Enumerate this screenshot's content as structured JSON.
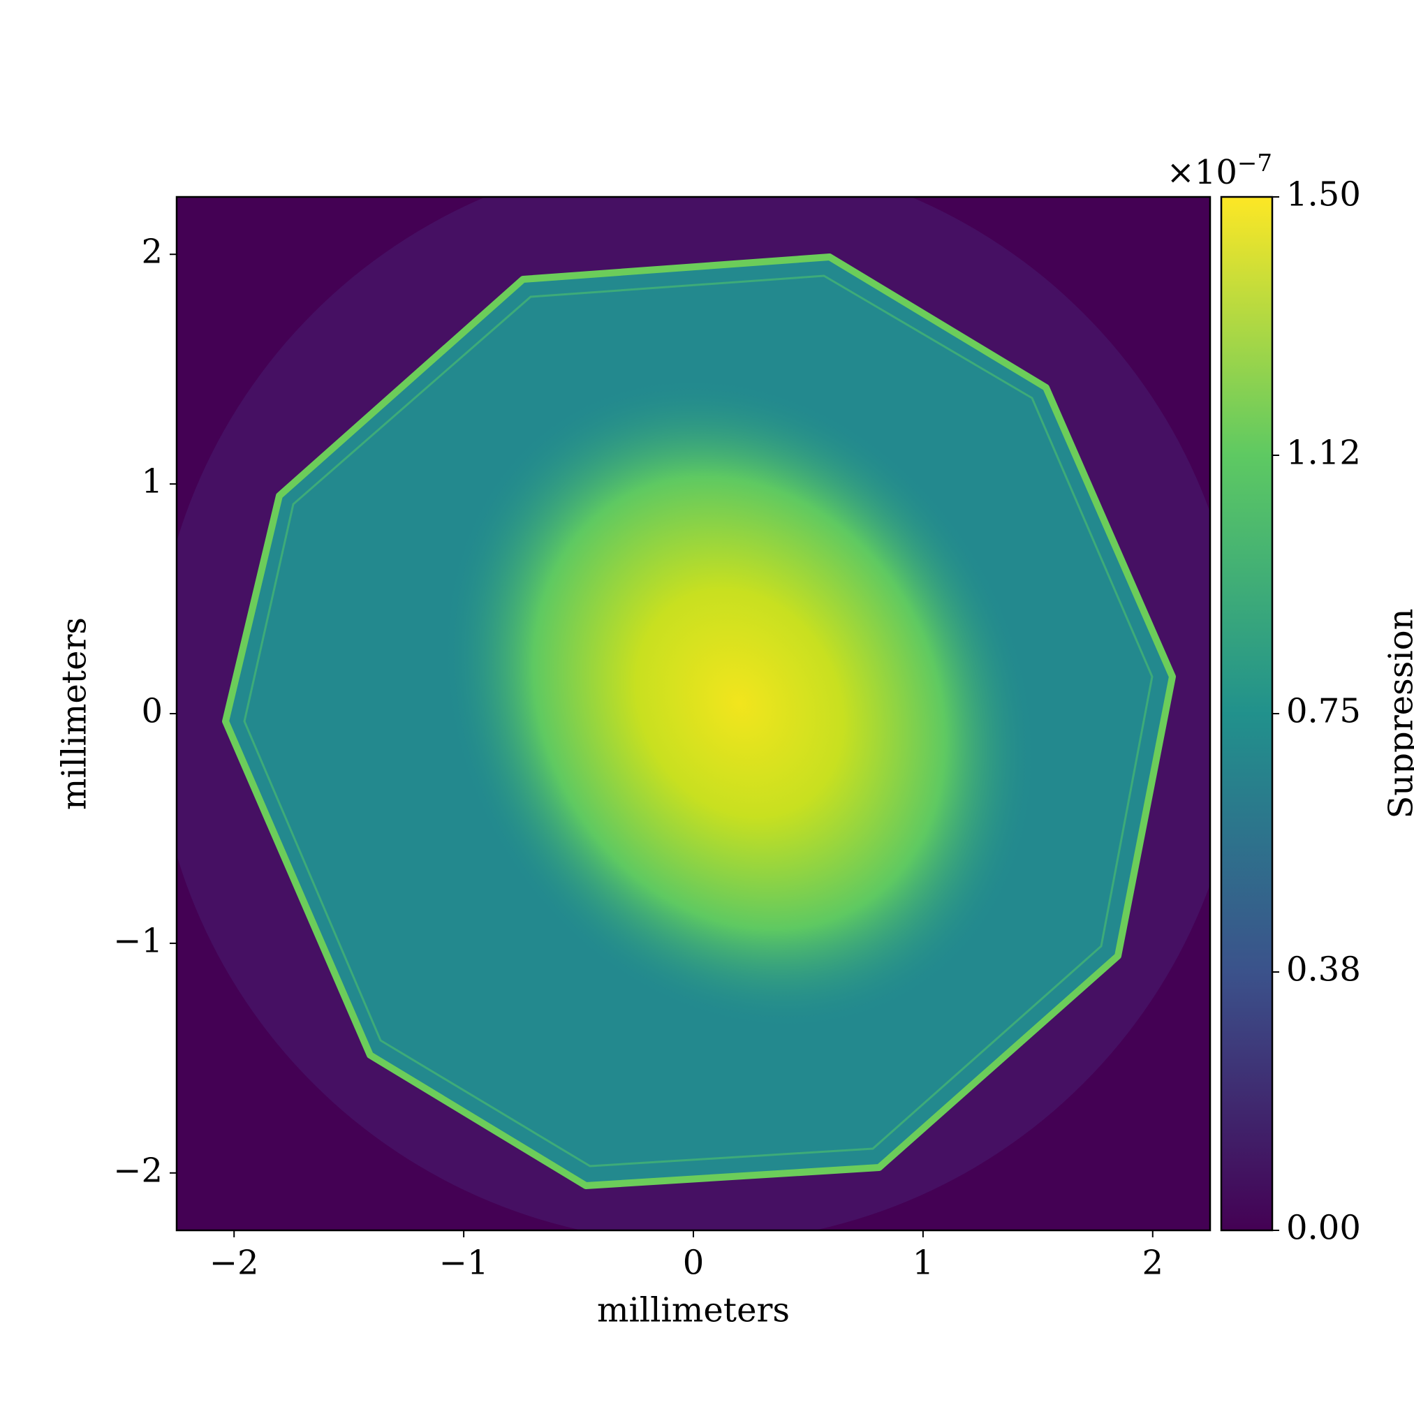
{
  "chart_data": {
    "type": "heatmap",
    "xlabel": "millimeters",
    "ylabel": "millimeters",
    "xlim": [
      -2.25,
      2.25
    ],
    "ylim": [
      -2.25,
      2.25
    ],
    "xticks": [
      {
        "value": -2,
        "label": "−2"
      },
      {
        "value": -1,
        "label": "−1"
      },
      0,
      1,
      2
    ],
    "yticks": [
      {
        "value": -2,
        "label": "−2"
      },
      {
        "value": -1,
        "label": "−1"
      },
      0,
      1,
      2
    ],
    "colormap": "viridis",
    "colorbar": {
      "label": "Suppression",
      "lim": [
        0,
        1.5
      ],
      "ticks": [
        {
          "value": 0,
          "label": "0.00"
        },
        {
          "value": 0.375,
          "label": "0.38"
        },
        {
          "value": 0.75,
          "label": "0.75"
        },
        {
          "value": 1.125,
          "label": "1.12"
        },
        {
          "value": 1.5,
          "label": "1.50"
        }
      ],
      "offset_base": "×10",
      "offset_exponent": "−7"
    }
  }
}
